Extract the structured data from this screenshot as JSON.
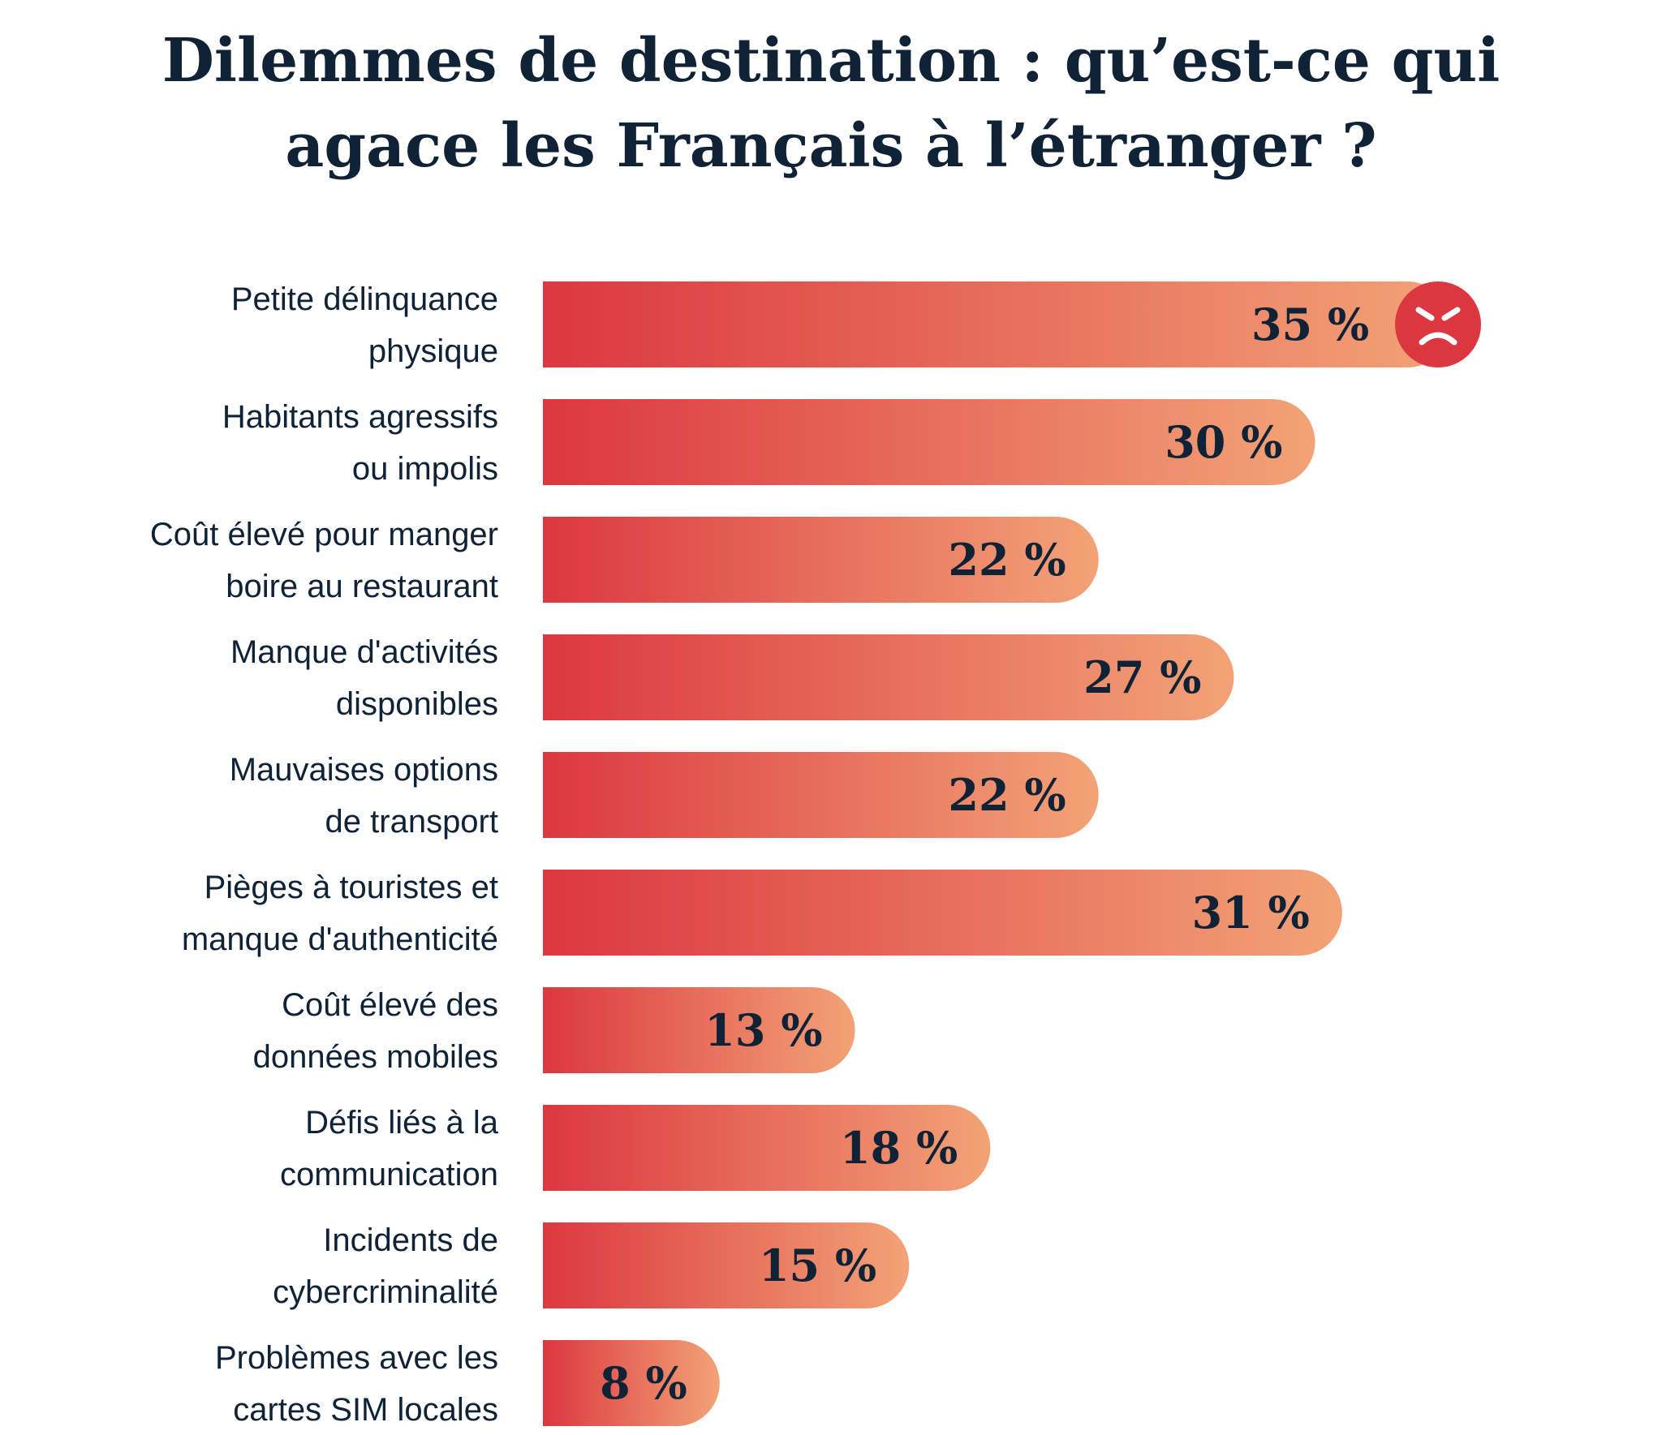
{
  "chart_data": {
    "type": "bar",
    "orientation": "horizontal",
    "title": [
      "Dilemmes de destination : qu’est-ce qui",
      "agace les Français à l’étranger ?"
    ],
    "categories": [
      [
        "Petite délinquance",
        "physique"
      ],
      [
        "Habitants agressifs",
        "ou impolis"
      ],
      [
        "Coût élevé pour manger",
        "boire au restaurant"
      ],
      [
        "Manque d'activités",
        "disponibles"
      ],
      [
        "Mauvaises options",
        "de transport"
      ],
      [
        "Pièges à touristes et",
        "manque d'authenticité"
      ],
      [
        "Coût élevé des",
        "données mobiles"
      ],
      [
        "Défis liés à la",
        "communication"
      ],
      [
        "Incidents de",
        "cybercriminalité"
      ],
      [
        "Problèmes avec les",
        "cartes SIM locales"
      ]
    ],
    "values": [
      35,
      30,
      22,
      27,
      22,
      31,
      13,
      18,
      15,
      8
    ],
    "value_labels": [
      "35 %",
      "30 %",
      "22 %",
      "27 %",
      "22 %",
      "31 %",
      "13 %",
      "18 %",
      "15 %",
      "8 %"
    ],
    "color": [
      "#dc3740",
      "#f2a377"
    ]
  }
}
